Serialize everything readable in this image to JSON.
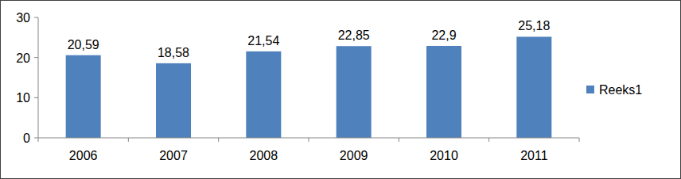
{
  "chart_data": {
    "type": "bar",
    "categories": [
      "2006",
      "2007",
      "2008",
      "2009",
      "2010",
      "2011"
    ],
    "series": [
      {
        "name": "Reeks1",
        "color": "#4f81bd",
        "values": [
          20.59,
          18.58,
          21.54,
          22.85,
          22.9,
          25.18
        ],
        "value_labels": [
          "20,59",
          "18,58",
          "21,54",
          "22,85",
          "22,9",
          "25,18"
        ]
      }
    ],
    "ylim": [
      0,
      30
    ],
    "yticks": [
      0,
      10,
      20,
      30
    ],
    "grid": false,
    "legend": "right",
    "data_labels": true
  }
}
